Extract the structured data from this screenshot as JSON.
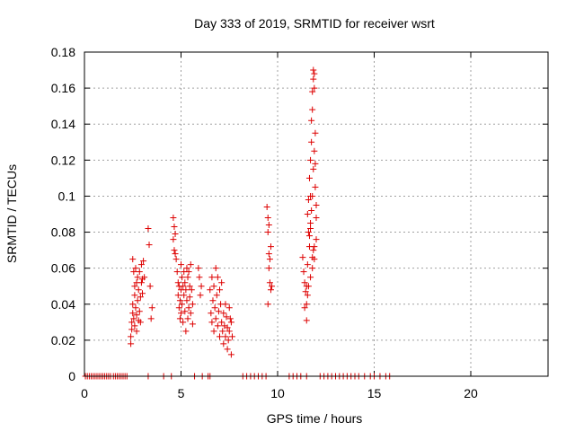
{
  "chart_data": {
    "type": "scatter",
    "title": "Day 333 of 2019, SRMTID for receiver wsrt",
    "xlabel": "GPS time / hours",
    "ylabel": "SRMTID / TECUs",
    "xlim": [
      0,
      24
    ],
    "ylim": [
      0,
      0.18
    ],
    "x_ticks": [
      0,
      5,
      10,
      15,
      20
    ],
    "y_ticks": [
      0,
      0.02,
      0.04,
      0.06,
      0.08,
      0.1,
      0.12,
      0.14,
      0.16,
      0.18
    ],
    "x_tick_labels": [
      "0",
      "5",
      "10",
      "15",
      "20"
    ],
    "y_tick_labels": [
      "0",
      "0.02",
      "0.04",
      "0.06",
      "0.08",
      "0.1",
      "0.12",
      "0.14",
      "0.16",
      "0.18"
    ],
    "grid": true,
    "marker": "+",
    "marker_color": "#dd0000",
    "series": [
      {
        "x": [
          0.05,
          0.15,
          0.25,
          0.35,
          0.45,
          0.55,
          0.65,
          0.75,
          0.85,
          0.95,
          1.05,
          1.15,
          1.25,
          1.35,
          1.5,
          1.6,
          1.7,
          1.8,
          1.9,
          2.0,
          2.1,
          2.2,
          3.3,
          4.1,
          4.5,
          5.7,
          6.1,
          6.4,
          6.5,
          8.2,
          8.4,
          8.6,
          8.8,
          9.0,
          9.2,
          9.4,
          10.6,
          10.8,
          11.0,
          11.2,
          11.5,
          12.2,
          12.4,
          12.6,
          12.8,
          13.0,
          13.2,
          13.4,
          13.6,
          13.8,
          14.0,
          14.2,
          14.5,
          14.8,
          15.0,
          15.3,
          15.6,
          15.8,
          2.4,
          2.4,
          2.45,
          2.45,
          2.5,
          2.5,
          2.5,
          2.55,
          2.55,
          2.6,
          2.6,
          2.6,
          2.65,
          2.65,
          2.7,
          2.7,
          2.7,
          2.75,
          2.75,
          2.8,
          2.8,
          2.85,
          2.85,
          2.9,
          2.9,
          2.95,
          2.95,
          3.0,
          3.0,
          3.05,
          3.1,
          3.3,
          3.35,
          3.4,
          3.45,
          3.5,
          4.6,
          4.6,
          4.65,
          4.65,
          4.7,
          4.7,
          4.75,
          4.8,
          4.85,
          4.85,
          4.9,
          4.9,
          4.95,
          4.95,
          5.0,
          5.0,
          5.0,
          5.05,
          5.05,
          5.1,
          5.1,
          5.15,
          5.15,
          5.2,
          5.2,
          5.25,
          5.25,
          5.3,
          5.3,
          5.35,
          5.35,
          5.4,
          5.4,
          5.45,
          5.45,
          5.5,
          5.5,
          5.55,
          5.6,
          5.6,
          5.9,
          5.95,
          6.0,
          6.05,
          6.5,
          6.55,
          6.6,
          6.6,
          6.65,
          6.7,
          6.7,
          6.75,
          6.8,
          6.8,
          6.85,
          6.9,
          6.9,
          6.95,
          7.0,
          7.0,
          7.05,
          7.1,
          7.1,
          7.15,
          7.2,
          7.2,
          7.25,
          7.3,
          7.3,
          7.35,
          7.4,
          7.4,
          7.45,
          7.5,
          7.5,
          7.55,
          7.6,
          7.6,
          7.65,
          9.45,
          9.5,
          9.5,
          9.55,
          9.55,
          9.6,
          9.6,
          9.65,
          9.65,
          9.7,
          9.5,
          9.55,
          11.3,
          11.35,
          11.4,
          11.4,
          11.45,
          11.5,
          11.5,
          11.55,
          11.55,
          11.6,
          11.6,
          11.65,
          11.65,
          11.7,
          11.7,
          11.75,
          11.75,
          11.8,
          11.8,
          11.85,
          11.85,
          11.9,
          11.9,
          11.95,
          11.95,
          12.0,
          12.0,
          11.7,
          11.75,
          11.8,
          11.85,
          11.9,
          11.95,
          11.65,
          11.7,
          11.8,
          11.9,
          12.0,
          11.5,
          11.55,
          11.6,
          11.7,
          11.8,
          11.9,
          11.85
        ],
        "y": [
          0,
          0,
          0,
          0,
          0,
          0,
          0,
          0,
          0,
          0,
          0,
          0,
          0,
          0,
          0,
          0,
          0,
          0,
          0,
          0,
          0,
          0,
          0,
          0,
          0,
          0,
          0,
          0,
          0,
          0,
          0,
          0,
          0,
          0,
          0,
          0,
          0,
          0,
          0,
          0,
          0,
          0,
          0,
          0,
          0,
          0,
          0,
          0,
          0,
          0,
          0,
          0,
          0,
          0,
          0,
          0,
          0,
          0,
          0.022,
          0.018,
          0.03,
          0.026,
          0.035,
          0.065,
          0.04,
          0.058,
          0.032,
          0.05,
          0.028,
          0.045,
          0.06,
          0.038,
          0.052,
          0.034,
          0.025,
          0.042,
          0.055,
          0.048,
          0.031,
          0.058,
          0.036,
          0.044,
          0.03,
          0.062,
          0.052,
          0.046,
          0.054,
          0.064,
          0.055,
          0.082,
          0.073,
          0.05,
          0.032,
          0.038,
          0.088,
          0.076,
          0.083,
          0.07,
          0.068,
          0.079,
          0.065,
          0.058,
          0.052,
          0.045,
          0.05,
          0.038,
          0.042,
          0.032,
          0.048,
          0.035,
          0.062,
          0.055,
          0.04,
          0.05,
          0.03,
          0.058,
          0.045,
          0.052,
          0.036,
          0.048,
          0.025,
          0.06,
          0.042,
          0.055,
          0.032,
          0.058,
          0.038,
          0.05,
          0.044,
          0.062,
          0.035,
          0.048,
          0.04,
          0.029,
          0.06,
          0.055,
          0.045,
          0.05,
          0.048,
          0.035,
          0.055,
          0.03,
          0.042,
          0.05,
          0.025,
          0.038,
          0.06,
          0.032,
          0.045,
          0.055,
          0.028,
          0.036,
          0.048,
          0.022,
          0.04,
          0.03,
          0.052,
          0.025,
          0.035,
          0.018,
          0.028,
          0.04,
          0.022,
          0.033,
          0.015,
          0.027,
          0.02,
          0.038,
          0.025,
          0.032,
          0.012,
          0.03,
          0.022,
          0.094,
          0.088,
          0.08,
          0.068,
          0.06,
          0.052,
          0.065,
          0.048,
          0.072,
          0.05,
          0.04,
          0.084,
          0.066,
          0.058,
          0.052,
          0.038,
          0.047,
          0.031,
          0.05,
          0.09,
          0.062,
          0.08,
          0.098,
          0.072,
          0.11,
          0.1,
          0.12,
          0.13,
          0.142,
          0.148,
          0.158,
          0.165,
          0.17,
          0.168,
          0.16,
          0.105,
          0.118,
          0.095,
          0.088,
          0.082,
          0.092,
          0.1,
          0.115,
          0.125,
          0.135,
          0.078,
          0.085,
          0.066,
          0.072,
          0.076,
          0.04,
          0.045,
          0.05,
          0.055,
          0.06,
          0.065,
          0.07
        ]
      }
    ]
  }
}
